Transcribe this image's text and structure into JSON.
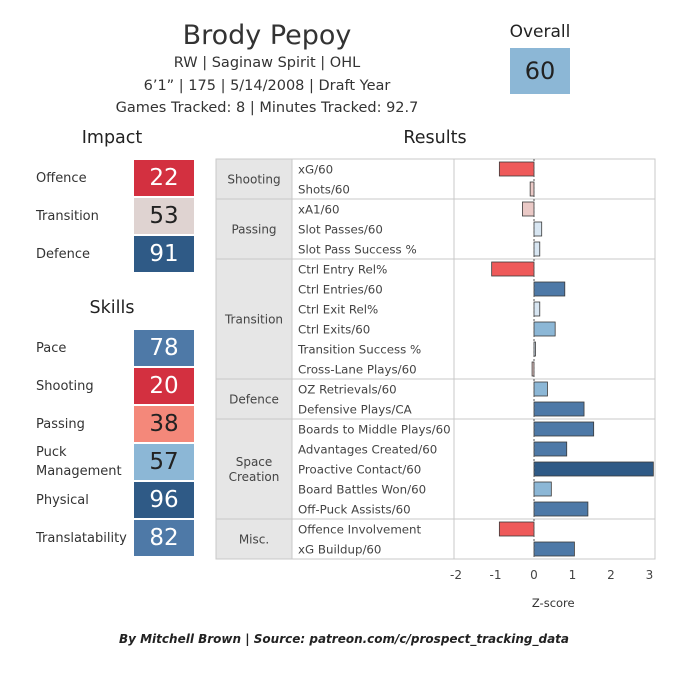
{
  "player": {
    "name": "Brody Pepoy",
    "line1": "RW | Saginaw Spirit | OHL",
    "line2": "6’1” | 175 | 5/14/2008 | Draft Year",
    "line3": "Games Tracked: 8 | Minutes Tracked: 92.7"
  },
  "overall": {
    "label": "Overall",
    "value": "60",
    "color": "#8cb7d6"
  },
  "impact": {
    "title": "Impact",
    "items": [
      {
        "label": "Offence",
        "value": "22",
        "color": "#d33040",
        "text_color": "#ffffff"
      },
      {
        "label": "Transition",
        "value": "53",
        "color": "#dfd3d1",
        "text_color": "#222222"
      },
      {
        "label": "Defence",
        "value": "91",
        "color": "#2f5a86",
        "text_color": "#ffffff"
      }
    ]
  },
  "skills": {
    "title": "Skills",
    "items": [
      {
        "label": "Pace",
        "value": "78",
        "color": "#4e79a7",
        "text_color": "#ffffff"
      },
      {
        "label": "Shooting",
        "value": "20",
        "color": "#d33040",
        "text_color": "#ffffff"
      },
      {
        "label": "Passing",
        "value": "38",
        "color": "#f4887a",
        "text_color": "#222222"
      },
      {
        "label": "Puck\nManagement",
        "value": "57",
        "color": "#8cb7d6",
        "text_color": "#222222"
      },
      {
        "label": "Physical",
        "value": "96",
        "color": "#2f5a86",
        "text_color": "#ffffff"
      },
      {
        "label": "Translatability",
        "value": "82",
        "color": "#4e79a7",
        "text_color": "#ffffff"
      }
    ]
  },
  "chart_data": {
    "type": "bar",
    "orientation": "horizontal",
    "title": "Results",
    "xlabel": "Z-score",
    "xlim": [
      -2.2,
      3.2
    ],
    "xticks": [
      -2,
      -1,
      0,
      1,
      2,
      3
    ],
    "colors": {
      "strong_neg": "#ee5a5a",
      "weak_neg": "#eac9c6",
      "weak_pos": "#d8e6f2",
      "mid_pos": "#8cb7d6",
      "strong_pos": "#4e79a7",
      "max_pos": "#2f5a86"
    },
    "groups": [
      {
        "name": "Shooting",
        "metrics": [
          {
            "label": "xG/60",
            "value": -0.9
          },
          {
            "label": "Shots/60",
            "value": -0.1
          }
        ]
      },
      {
        "name": "Passing",
        "metrics": [
          {
            "label": "xA1/60",
            "value": -0.3
          },
          {
            "label": "Slot Passes/60",
            "value": 0.2
          },
          {
            "label": "Slot Pass Success %",
            "value": 0.15
          }
        ]
      },
      {
        "name": "Transition",
        "metrics": [
          {
            "label": "Ctrl Entry Rel%",
            "value": -1.1
          },
          {
            "label": "Ctrl Entries/60",
            "value": 0.8
          },
          {
            "label": "Ctrl Exit Rel%",
            "value": 0.15
          },
          {
            "label": "Ctrl Exits/60",
            "value": 0.55
          },
          {
            "label": "Transition Success %",
            "value": 0.03
          },
          {
            "label": "Cross-Lane Plays/60",
            "value": -0.05
          }
        ]
      },
      {
        "name": "Defence",
        "metrics": [
          {
            "label": "OZ Retrievals/60",
            "value": 0.35
          },
          {
            "label": "Defensive Plays/CA",
            "value": 1.3
          }
        ]
      },
      {
        "name": "Space\nCreation",
        "metrics": [
          {
            "label": "Boards to Middle Plays/60",
            "value": 1.55
          },
          {
            "label": "Advantages Created/60",
            "value": 0.85
          },
          {
            "label": "Proactive Contact/60",
            "value": 3.1
          },
          {
            "label": "Board Battles Won/60",
            "value": 0.45
          },
          {
            "label": "Off-Puck Assists/60",
            "value": 1.4
          }
        ]
      },
      {
        "name": "Misc.",
        "metrics": [
          {
            "label": "Offence Involvement",
            "value": -0.9
          },
          {
            "label": "xG Buildup/60",
            "value": 1.05
          }
        ]
      }
    ]
  },
  "footer": "By Mitchell Brown | Source: patreon.com/c/prospect_tracking_data"
}
